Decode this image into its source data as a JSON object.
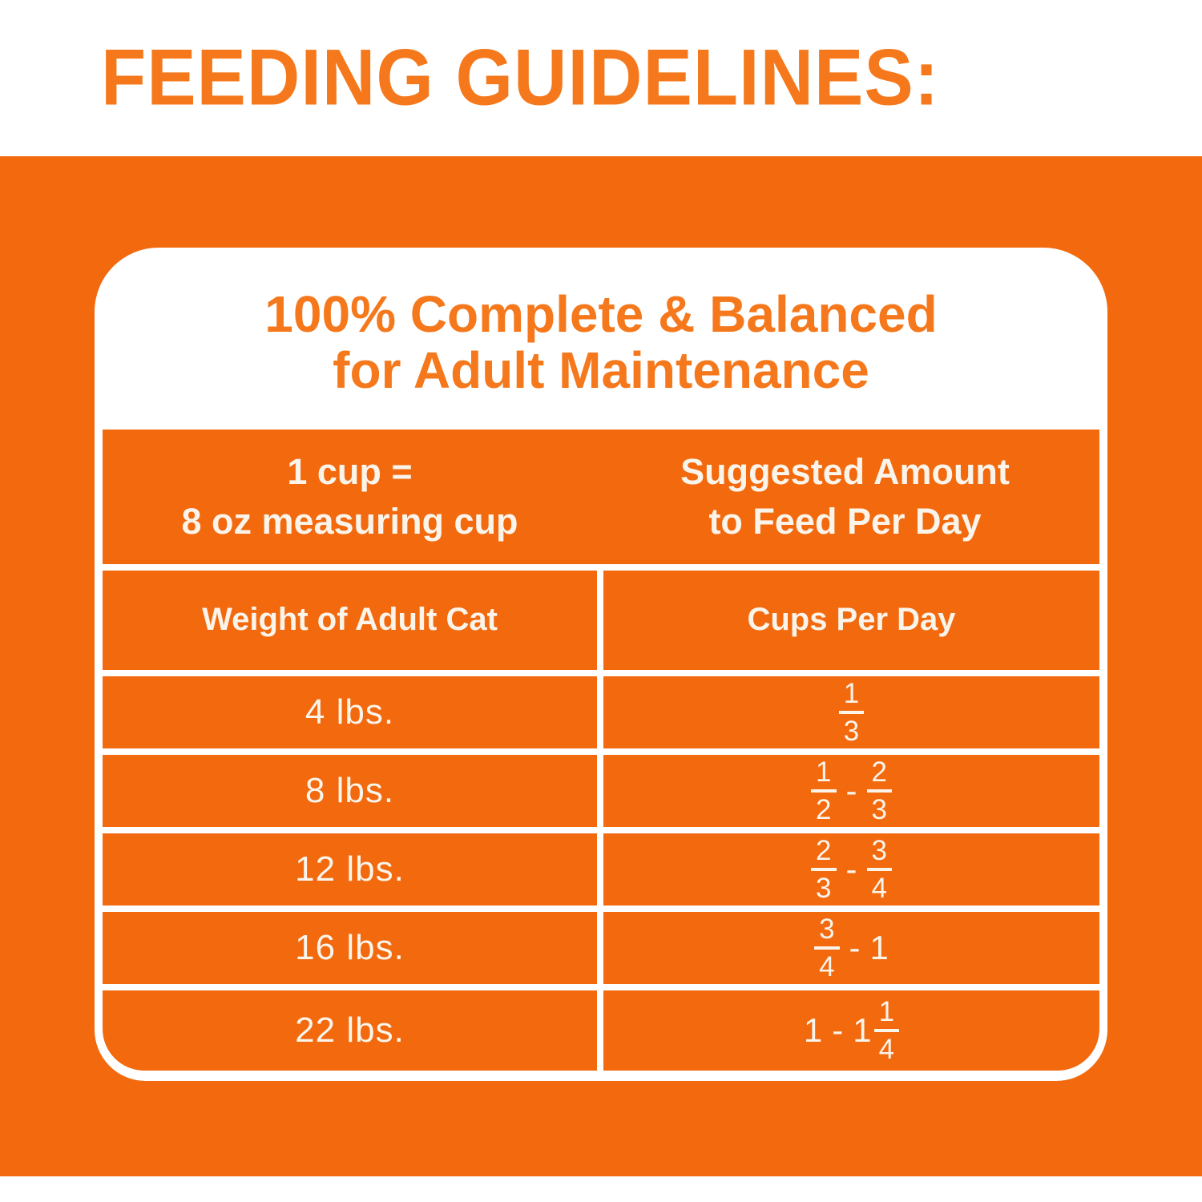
{
  "page_title": "FEEDING GUIDELINES:",
  "colors": {
    "orange_background": "#F2690E",
    "orange_text": "#F5791C",
    "table_white": "#FAF4EA",
    "card_white": "#FFFFFF"
  },
  "card": {
    "heading_line1": "100% Complete & Balanced",
    "heading_line2": "for Adult Maintenance"
  },
  "table": {
    "header": {
      "left_line1": "1 cup =",
      "left_line2": "8 oz measuring cup",
      "right_line1": "Suggested Amount",
      "right_line2": "to Feed Per Day"
    },
    "columns": {
      "left": "Weight of Adult Cat",
      "right": "Cups Per Day"
    },
    "rows": [
      {
        "weight": "4 lbs.",
        "cups": [
          {
            "frac": [
              "1",
              "3"
            ]
          }
        ]
      },
      {
        "weight": "8 lbs.",
        "cups": [
          {
            "frac": [
              "1",
              "2"
            ]
          },
          {
            "text": "-"
          },
          {
            "frac": [
              "2",
              "3"
            ]
          }
        ]
      },
      {
        "weight": "12 lbs.",
        "cups": [
          {
            "frac": [
              "2",
              "3"
            ]
          },
          {
            "text": "-"
          },
          {
            "frac": [
              "3",
              "4"
            ]
          }
        ]
      },
      {
        "weight": "16 lbs.",
        "cups": [
          {
            "frac": [
              "3",
              "4"
            ]
          },
          {
            "text": "-"
          },
          {
            "text": "1"
          }
        ]
      },
      {
        "weight": "22 lbs.",
        "cups": [
          {
            "text": "1"
          },
          {
            "text": "-"
          },
          {
            "mixed": {
              "whole": "1",
              "frac": [
                "1",
                "4"
              ]
            }
          }
        ]
      }
    ]
  }
}
